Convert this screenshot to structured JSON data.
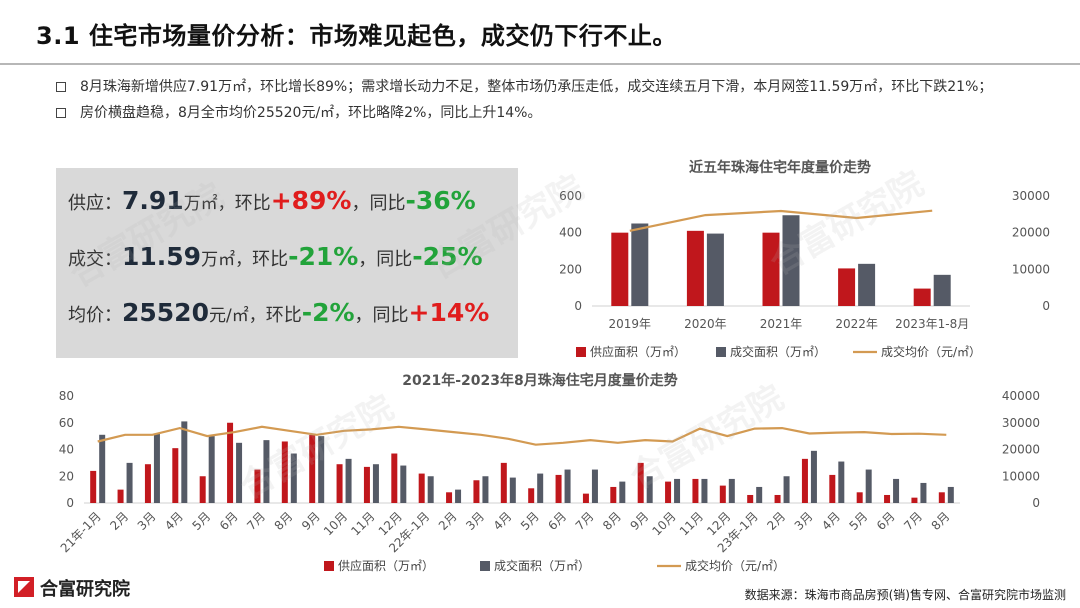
{
  "title": "3.1 住宅市场量价分析：市场难见起色，成交仍下行不止。",
  "bullets": [
    "8月珠海新增供应7.91万㎡，环比增长89%；需求增长动力不足，整体市场仍承压走低，成交连续五月下滑，本月网签11.59万㎡，环比下跌21%；",
    "房价横盘趋稳，8月全市均价25520元/㎡，环比略降2%，同比上升14%。"
  ],
  "panel": {
    "row1": {
      "label": "供应：",
      "value": "7.91",
      "unit": "万㎡，",
      "mom_label": "环比",
      "mom": "+89%",
      "sep": "，",
      "yoy_label": "同比",
      "yoy": "-36%"
    },
    "row2": {
      "label": "成交：",
      "value": "11.59",
      "unit": "万㎡，",
      "mom_label": "环比",
      "mom": "-21%",
      "sep": "，",
      "yoy_label": "同比",
      "yoy": "-25%"
    },
    "row3": {
      "label": "均价：",
      "value": "25520",
      "unit": "元/㎡，",
      "mom_label": "环比",
      "mom": "-2%",
      "sep": "，",
      "yoy_label": "同比",
      "yoy": "+14%"
    }
  },
  "colors": {
    "supply": "#c0171c",
    "deal": "#555a66",
    "price": "#d39a52",
    "up": "#e01d1d",
    "down": "#22a33a"
  },
  "watermark": "合富研究院",
  "logo": {
    "name": "合富研究院"
  },
  "source": "数据来源：珠海市商品房预(销)售专网、合富研究院市场监测",
  "chart_data": [
    {
      "type": "bar",
      "title": "近五年珠海住宅年度量价走势",
      "categories": [
        "2019年",
        "2020年",
        "2021年",
        "2022年",
        "2023年1-8月"
      ],
      "series": [
        {
          "name": "供应面积（万㎡）",
          "type": "bar",
          "axis": "left",
          "values": [
            400,
            410,
            400,
            205,
            95
          ]
        },
        {
          "name": "成交面积（万㎡）",
          "type": "bar",
          "axis": "left",
          "values": [
            450,
            395,
            495,
            230,
            170
          ]
        },
        {
          "name": "成交均价（元/㎡）",
          "type": "line",
          "axis": "right",
          "values": [
            20500,
            24800,
            25900,
            24000,
            26000
          ]
        }
      ],
      "y_left": {
        "min": 0,
        "max": 600,
        "ticks": [
          0,
          200,
          400,
          600
        ]
      },
      "y_right": {
        "min": 0,
        "max": 30000,
        "ticks": [
          "0",
          "10000",
          "20000",
          "30000"
        ]
      },
      "legend_position": "bottom"
    },
    {
      "type": "bar",
      "title": "2021年-2023年8月珠海住宅月度量价走势",
      "categories": [
        "21年-1月",
        "2月",
        "3月",
        "4月",
        "5月",
        "6月",
        "7月",
        "8月",
        "9月",
        "10月",
        "11月",
        "12月",
        "22年-1月",
        "2月",
        "3月",
        "4月",
        "5月",
        "6月",
        "7月",
        "8月",
        "9月",
        "10月",
        "11月",
        "12月",
        "23年-1月",
        "2月",
        "3月",
        "4月",
        "5月",
        "6月",
        "7月",
        "8月"
      ],
      "series": [
        {
          "name": "供应面积（万㎡）",
          "type": "bar",
          "axis": "left",
          "values": [
            24,
            10,
            29,
            41,
            20,
            60,
            25,
            46,
            51,
            29,
            27,
            37,
            22,
            8,
            17,
            30,
            11,
            21,
            7,
            12,
            30,
            16,
            18,
            13,
            6,
            6,
            33,
            21,
            8,
            6,
            4,
            8
          ]
        },
        {
          "name": "成交面积（万㎡）",
          "type": "bar",
          "axis": "left",
          "values": [
            51,
            30,
            52,
            61,
            50,
            45,
            47,
            37,
            50,
            33,
            29,
            28,
            20,
            10,
            20,
            19,
            22,
            25,
            25,
            16,
            20,
            18,
            18,
            18,
            12,
            20,
            39,
            31,
            25,
            18,
            15,
            12
          ]
        },
        {
          "name": "成交均价（元/㎡）",
          "type": "line",
          "axis": "right",
          "values": [
            23000,
            25500,
            25500,
            28000,
            25000,
            26500,
            28500,
            27000,
            25500,
            27000,
            27500,
            28500,
            27500,
            26500,
            25500,
            24000,
            21800,
            22500,
            23500,
            22500,
            23500,
            23000,
            27800,
            25000,
            27800,
            28000,
            26000,
            26300,
            26500,
            25800,
            25900,
            25500
          ]
        }
      ],
      "y_left": {
        "min": 0,
        "max": 80,
        "ticks": [
          0,
          20,
          40,
          60,
          80
        ]
      },
      "y_right": {
        "min": 0,
        "max": 40000,
        "ticks": [
          "0",
          "10000",
          "20000",
          "30000",
          "40000"
        ]
      },
      "legend_position": "bottom"
    }
  ]
}
